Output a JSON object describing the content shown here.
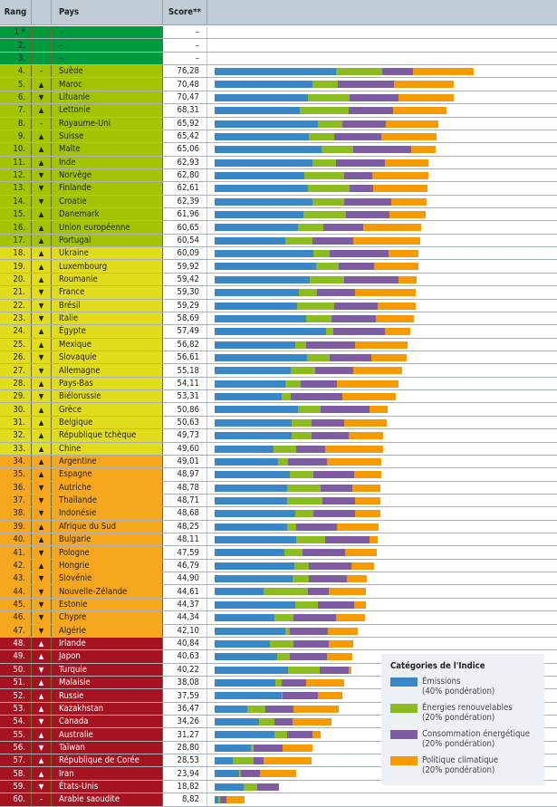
{
  "header": {
    "rank": "Rang",
    "trend": "",
    "country": "Pays",
    "score": "Score**"
  },
  "tier_colors": {
    "top": "#009a3e",
    "good": "#a3c400",
    "moderate": "#e2dd1c",
    "poor": "#f7a71e",
    "very_poor": "#a51320"
  },
  "segment_colors": [
    "#3a87c8",
    "#8bbb1e",
    "#7d5ca2",
    "#f59a00"
  ],
  "legend": {
    "title": "Catégories de l'Indice",
    "items": [
      {
        "label": "Émissions",
        "weight": "(40% pondération)"
      },
      {
        "label": "Énergies renouvelables",
        "weight": "(20% pondération)"
      },
      {
        "label": "Consommation énergétique",
        "weight": "(20% pondération)"
      },
      {
        "label": "Politique climatique",
        "weight": "(20% pondération)"
      }
    ]
  },
  "rows": [
    {
      "rank": "1.*",
      "trend": "",
      "country": "–",
      "score": "–",
      "tier": "top"
    },
    {
      "rank": "2.",
      "trend": "",
      "country": "–",
      "score": "–",
      "tier": "top"
    },
    {
      "rank": "3.",
      "trend": "",
      "country": "–",
      "score": "–",
      "tier": "top"
    },
    {
      "rank": "4.",
      "trend": "–",
      "country": "Suède",
      "score": "76,28",
      "tier": "good"
    },
    {
      "rank": "5.",
      "trend": "▲",
      "country": "Maroc",
      "score": "70,48",
      "tier": "good"
    },
    {
      "rank": "6.",
      "trend": "▼",
      "country": "Lituanie",
      "score": "70,47",
      "tier": "good"
    },
    {
      "rank": "7.",
      "trend": "▲",
      "country": "Lettonie",
      "score": "68,31",
      "tier": "good"
    },
    {
      "rank": "8.",
      "trend": "–",
      "country": "Royaume-Uni",
      "score": "65,92",
      "tier": "good"
    },
    {
      "rank": "9.",
      "trend": "▲",
      "country": "Suisse",
      "score": "65,42",
      "tier": "good"
    },
    {
      "rank": "10.",
      "trend": "▲",
      "country": "Malte",
      "score": "65,06",
      "tier": "good"
    },
    {
      "rank": "11.",
      "trend": "▲",
      "country": "Inde",
      "score": "62,93",
      "tier": "good"
    },
    {
      "rank": "12.",
      "trend": "▼",
      "country": "Norvège",
      "score": "62,80",
      "tier": "good"
    },
    {
      "rank": "13.",
      "trend": "▼",
      "country": "Finlande",
      "score": "62,61",
      "tier": "good"
    },
    {
      "rank": "14.",
      "trend": "▼",
      "country": "Croatie",
      "score": "62,39",
      "tier": "good"
    },
    {
      "rank": "15.",
      "trend": "▲",
      "country": "Danemark",
      "score": "61,96",
      "tier": "good"
    },
    {
      "rank": "16.",
      "trend": "▲",
      "country": "Union européenne",
      "score": "60,65",
      "tier": "good"
    },
    {
      "rank": "17.",
      "trend": "▲",
      "country": "Portugal",
      "score": "60,54",
      "tier": "good"
    },
    {
      "rank": "18.",
      "trend": "▲",
      "country": "Ukraine",
      "score": "60,09",
      "tier": "moderate"
    },
    {
      "rank": "19.",
      "trend": "▲",
      "country": "Luxembourg",
      "score": "59,92",
      "tier": "moderate"
    },
    {
      "rank": "20.",
      "trend": "▲",
      "country": "Roumanie",
      "score": "59,42",
      "tier": "moderate"
    },
    {
      "rank": "21.",
      "trend": "▼",
      "country": "France",
      "score": "59,30",
      "tier": "moderate"
    },
    {
      "rank": "22.",
      "trend": "▼",
      "country": "Brésil",
      "score": "59,29",
      "tier": "moderate"
    },
    {
      "rank": "23.",
      "trend": "▼",
      "country": "Italie",
      "score": "58,69",
      "tier": "moderate"
    },
    {
      "rank": "24.",
      "trend": "▲",
      "country": "Égypte",
      "score": "57,49",
      "tier": "moderate"
    },
    {
      "rank": "25.",
      "trend": "▲",
      "country": "Mexique",
      "score": "56,82",
      "tier": "moderate"
    },
    {
      "rank": "26.",
      "trend": "▼",
      "country": "Slovaquie",
      "score": "56,61",
      "tier": "moderate"
    },
    {
      "rank": "27.",
      "trend": "▼",
      "country": "Allemagne",
      "score": "55,18",
      "tier": "moderate"
    },
    {
      "rank": "28.",
      "trend": "▲",
      "country": "Pays-Bas",
      "score": "54,11",
      "tier": "moderate"
    },
    {
      "rank": "29.",
      "trend": "▼",
      "country": "Biélorussie",
      "score": "53,31",
      "tier": "moderate"
    },
    {
      "rank": "30.",
      "trend": "▲",
      "country": "Grèce",
      "score": "50,86",
      "tier": "moderate"
    },
    {
      "rank": "31.",
      "trend": "▲",
      "country": "Belgique",
      "score": "50,63",
      "tier": "moderate"
    },
    {
      "rank": "32.",
      "trend": "▲",
      "country": "République tchèque",
      "score": "49,73",
      "tier": "moderate"
    },
    {
      "rank": "33.",
      "trend": "▲",
      "country": "Chine",
      "score": "49,60",
      "tier": "moderate"
    },
    {
      "rank": "34.",
      "trend": "▲",
      "country": "Argentine",
      "score": "49,01",
      "tier": "poor"
    },
    {
      "rank": "35.",
      "trend": "▲",
      "country": "Espagne",
      "score": "48,97",
      "tier": "poor"
    },
    {
      "rank": "36.",
      "trend": "▼",
      "country": "Autriche",
      "score": "48,78",
      "tier": "poor"
    },
    {
      "rank": "37.",
      "trend": "▼",
      "country": "Thaïlande",
      "score": "48,71",
      "tier": "poor"
    },
    {
      "rank": "38.",
      "trend": "▼",
      "country": "Indonésie",
      "score": "48,68",
      "tier": "poor"
    },
    {
      "rank": "39.",
      "trend": "▲",
      "country": "Afrique du Sud",
      "score": "48,25",
      "tier": "poor"
    },
    {
      "rank": "40.",
      "trend": "▲",
      "country": "Bulgarie",
      "score": "48,11",
      "tier": "poor"
    },
    {
      "rank": "41.",
      "trend": "▼",
      "country": "Pologne",
      "score": "47,59",
      "tier": "poor"
    },
    {
      "rank": "42.",
      "trend": "▲",
      "country": "Hongrie",
      "score": "46,79",
      "tier": "poor"
    },
    {
      "rank": "43.",
      "trend": "▼",
      "country": "Slovénie",
      "score": "44,90",
      "tier": "poor"
    },
    {
      "rank": "44.",
      "trend": "▼",
      "country": "Nouvelle-Zélande",
      "score": "44,61",
      "tier": "poor"
    },
    {
      "rank": "45.",
      "trend": "▼",
      "country": "Estonie",
      "score": "44,37",
      "tier": "poor"
    },
    {
      "rank": "46.",
      "trend": "▼",
      "country": "Chypre",
      "score": "44,34",
      "tier": "poor"
    },
    {
      "rank": "47.",
      "trend": "▼",
      "country": "Algérie",
      "score": "42,10",
      "tier": "poor"
    },
    {
      "rank": "48.",
      "trend": "▲",
      "country": "Irlande",
      "score": "40,84",
      "tier": "very_poor"
    },
    {
      "rank": "49.",
      "trend": "▲",
      "country": "Japon",
      "score": "40,63",
      "tier": "very_poor"
    },
    {
      "rank": "50.",
      "trend": "▼",
      "country": "Turquie",
      "score": "40,22",
      "tier": "very_poor"
    },
    {
      "rank": "51.",
      "trend": "▲",
      "country": "Malaisie",
      "score": "38,08",
      "tier": "very_poor"
    },
    {
      "rank": "52.",
      "trend": "▲",
      "country": "Russie",
      "score": "37,59",
      "tier": "very_poor"
    },
    {
      "rank": "53.",
      "trend": "▲",
      "country": "Kazakhstan",
      "score": "36,47",
      "tier": "very_poor"
    },
    {
      "rank": "54.",
      "trend": "▼",
      "country": "Canada",
      "score": "34,26",
      "tier": "very_poor"
    },
    {
      "rank": "55.",
      "trend": "▲",
      "country": "Australie",
      "score": "31,27",
      "tier": "very_poor"
    },
    {
      "rank": "56.",
      "trend": "▼",
      "country": "Taïwan",
      "score": "28,80",
      "tier": "very_poor"
    },
    {
      "rank": "57.",
      "trend": "▲",
      "country": "République de Corée",
      "score": "28,53",
      "tier": "very_poor"
    },
    {
      "rank": "58.",
      "trend": "▲",
      "country": "Iran",
      "score": "23,94",
      "tier": "very_poor"
    },
    {
      "rank": "59.",
      "trend": "▼",
      "country": "États-Unis",
      "score": "18,82",
      "tier": "very_poor"
    },
    {
      "rank": "60.",
      "trend": "–",
      "country": "Arabie saoudite",
      "score": "8,82",
      "tier": "very_poor"
    }
  ],
  "chart_data": {
    "type": "bar",
    "stacked": true,
    "orientation": "horizontal",
    "xlim": [
      0,
      100
    ],
    "categories": [
      "Suède",
      "Maroc",
      "Lituanie",
      "Lettonie",
      "Royaume-Uni",
      "Suisse",
      "Malte",
      "Inde",
      "Norvège",
      "Finlande",
      "Croatie",
      "Danemark",
      "Union européenne",
      "Portugal",
      "Ukraine",
      "Luxembourg",
      "Roumanie",
      "France",
      "Brésil",
      "Italie",
      "Égypte",
      "Mexique",
      "Slovaquie",
      "Allemagne",
      "Pays-Bas",
      "Biélorussie",
      "Grèce",
      "Belgique",
      "République tchèque",
      "Chine",
      "Argentine",
      "Espagne",
      "Autriche",
      "Thaïlande",
      "Indonésie",
      "Afrique du Sud",
      "Bulgarie",
      "Pologne",
      "Hongrie",
      "Slovénie",
      "Nouvelle-Zélande",
      "Estonie",
      "Chypre",
      "Algérie",
      "Irlande",
      "Japon",
      "Turquie",
      "Malaisie",
      "Russie",
      "Kazakhstan",
      "Canada",
      "Australie",
      "Taïwan",
      "République de Corée",
      "Iran",
      "États-Unis",
      "Arabie saoudite"
    ],
    "series": [
      {
        "name": "Émissions",
        "values": [
          35.8,
          28.8,
          27.4,
          25.0,
          30.3,
          27.7,
          31.5,
          28.7,
          26.4,
          27.5,
          28.8,
          26.0,
          24.6,
          20.7,
          29.0,
          29.9,
          28.0,
          24.9,
          24.3,
          26.8,
          32.9,
          23.6,
          27.3,
          22.3,
          20.8,
          19.6,
          24.5,
          22.6,
          22.6,
          17.3,
          18.6,
          22.1,
          21.2,
          21.2,
          23.6,
          21.2,
          24.0,
          20.5,
          23.4,
          22.8,
          14.3,
          23.6,
          17.6,
          20.8,
          16.3,
          18.5,
          21.7,
          17.8,
          19.7,
          9.5,
          13.0,
          17.6,
          10.7,
          5.3,
          7.1,
          8.6,
          1.0
        ]
      },
      {
        "name": "Énergies renouvelables",
        "values": [
          13.4,
          7.4,
          12.4,
          14.5,
          7.2,
          7.4,
          9.3,
          7.0,
          11.6,
          12.2,
          9.2,
          12.7,
          7.4,
          8.2,
          4.8,
          6.7,
          10.0,
          5.1,
          10.8,
          7.7,
          1.9,
          3.3,
          6.5,
          7.4,
          4.5,
          2.9,
          6.8,
          5.8,
          6.0,
          6.7,
          3.0,
          7.0,
          9.9,
          10.6,
          5.5,
          2.8,
          8.5,
          5.4,
          4.3,
          4.9,
          13.2,
          6.9,
          5.7,
          1.4,
          6.8,
          3.5,
          9.3,
          2.0,
          0.4,
          5.4,
          4.7,
          3.7,
          0.8,
          6.2,
          0.6,
          3.8,
          0.5
        ]
      },
      {
        "name": "Consommation énergétique",
        "values": [
          9.3,
          16.7,
          14.2,
          13.0,
          13.0,
          13.9,
          17.1,
          14.4,
          8.4,
          6.9,
          14.0,
          12.8,
          11.6,
          12.0,
          17.5,
          10.3,
          16.2,
          11.2,
          12.9,
          13.0,
          15.2,
          14.5,
          12.3,
          11.0,
          10.6,
          15.2,
          14.3,
          9.6,
          10.8,
          8.5,
          11.4,
          12.0,
          9.3,
          9.6,
          12.2,
          12.1,
          13.1,
          12.6,
          12.6,
          11.1,
          6.2,
          10.5,
          12.5,
          11.0,
          10.5,
          11.1,
          8.5,
          7.1,
          10.2,
          8.3,
          5.1,
          7.5,
          8.4,
          2.9,
          5.6,
          6.4,
          1.9
        ]
      },
      {
        "name": "Politique climatique",
        "values": [
          17.8,
          17.6,
          16.5,
          15.8,
          15.4,
          16.4,
          7.2,
          12.8,
          16.4,
          16.0,
          10.4,
          10.5,
          17.1,
          19.6,
          8.8,
          13.0,
          5.2,
          18.1,
          11.3,
          11.2,
          7.5,
          15.4,
          10.5,
          14.5,
          18.2,
          15.6,
          5.3,
          12.6,
          10.3,
          17.1,
          16.0,
          7.9,
          8.4,
          7.3,
          7.4,
          12.2,
          2.5,
          9.1,
          6.5,
          6.1,
          10.9,
          3.4,
          8.5,
          8.9,
          7.2,
          7.5,
          0.7,
          11.2,
          7.3,
          13.3,
          11.5,
          2.5,
          8.9,
          14.1,
          10.6,
          0,
          5.4
        ]
      }
    ]
  }
}
